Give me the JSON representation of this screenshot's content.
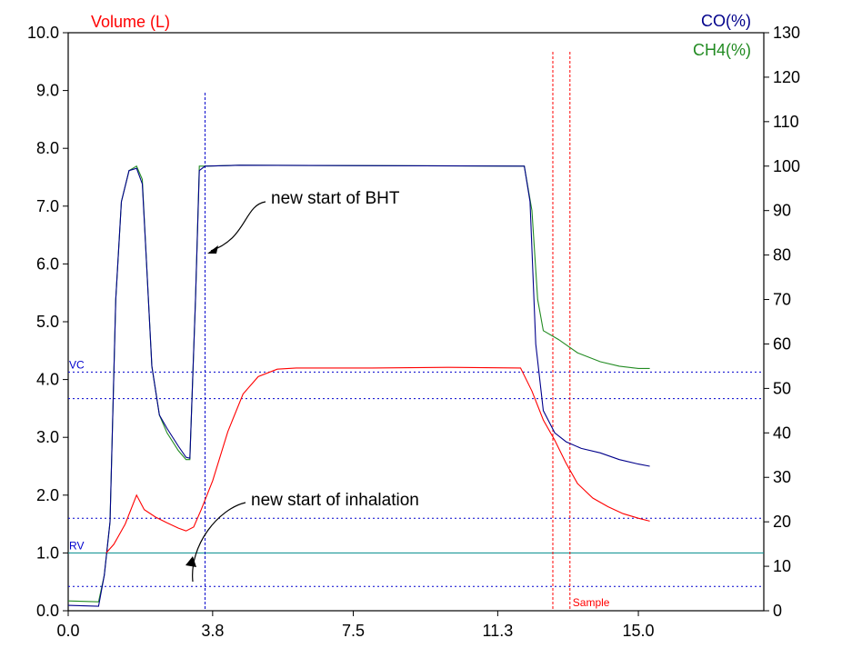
{
  "chart_data": {
    "type": "line",
    "title": "",
    "left_axis_title": "Volume (L)",
    "right_axis_titles": [
      "CO(%)",
      "CH4(%)"
    ],
    "xlim": [
      0,
      18.3
    ],
    "ylim_left": [
      0,
      10
    ],
    "ylim_right": [
      0,
      130
    ],
    "x_ticks": [
      {
        "value": 0,
        "label": "0.0"
      },
      {
        "value": 3.8,
        "label": "3.8"
      },
      {
        "value": 7.5,
        "label": "7.5"
      },
      {
        "value": 11.3,
        "label": "11.3"
      },
      {
        "value": 15.0,
        "label": "15.0"
      }
    ],
    "y_ticks_left": [
      "0.0",
      "1.0",
      "2.0",
      "3.0",
      "4.0",
      "5.0",
      "6.0",
      "7.0",
      "8.0",
      "9.0",
      "10.0"
    ],
    "y_ticks_right": [
      "0",
      "10",
      "20",
      "30",
      "40",
      "50",
      "60",
      "70",
      "80",
      "90",
      "100",
      "110",
      "120",
      "130"
    ],
    "colors": {
      "volume": "#ff0000",
      "co": "#00008b",
      "ch4": "#228b22",
      "reference": "#0000cd",
      "rv_line": "#008b8b",
      "sample": "#ff0000",
      "bht": "#0000cd"
    },
    "series": [
      {
        "name": "Volume (L)",
        "axis": "left",
        "color": "#ff0000",
        "points": [
          [
            1.0,
            1.0
          ],
          [
            1.2,
            1.15
          ],
          [
            1.5,
            1.5
          ],
          [
            1.8,
            2.0
          ],
          [
            2.0,
            1.75
          ],
          [
            2.3,
            1.62
          ],
          [
            2.6,
            1.52
          ],
          [
            2.9,
            1.43
          ],
          [
            3.1,
            1.38
          ],
          [
            3.3,
            1.45
          ],
          [
            3.5,
            1.75
          ],
          [
            3.8,
            2.25
          ],
          [
            4.2,
            3.1
          ],
          [
            4.6,
            3.75
          ],
          [
            5.0,
            4.05
          ],
          [
            5.5,
            4.18
          ],
          [
            6.0,
            4.2
          ],
          [
            8.0,
            4.2
          ],
          [
            10.0,
            4.21
          ],
          [
            11.9,
            4.2
          ],
          [
            12.2,
            3.8
          ],
          [
            12.5,
            3.3
          ],
          [
            12.8,
            2.95
          ],
          [
            13.1,
            2.55
          ],
          [
            13.4,
            2.2
          ],
          [
            13.8,
            1.95
          ],
          [
            14.2,
            1.8
          ],
          [
            14.6,
            1.68
          ],
          [
            15.0,
            1.6
          ],
          [
            15.3,
            1.55
          ]
        ]
      },
      {
        "name": "CO(%)",
        "axis": "right",
        "color": "#00008b",
        "points": [
          [
            0,
            1.2
          ],
          [
            0.8,
            1.0
          ],
          [
            0.95,
            8
          ],
          [
            1.1,
            20
          ],
          [
            1.25,
            70
          ],
          [
            1.4,
            92
          ],
          [
            1.6,
            99
          ],
          [
            1.8,
            99.5
          ],
          [
            1.95,
            96
          ],
          [
            2.05,
            80
          ],
          [
            2.2,
            55
          ],
          [
            2.4,
            44
          ],
          [
            2.6,
            41
          ],
          [
            2.9,
            37
          ],
          [
            3.1,
            34.5
          ],
          [
            3.2,
            34.3
          ],
          [
            3.35,
            70
          ],
          [
            3.45,
            99
          ],
          [
            3.6,
            100
          ],
          [
            4.5,
            100.2
          ],
          [
            12.0,
            100
          ],
          [
            12.15,
            92
          ],
          [
            12.3,
            60
          ],
          [
            12.5,
            45
          ],
          [
            12.8,
            40
          ],
          [
            13.1,
            38
          ],
          [
            13.5,
            36.5
          ],
          [
            14.0,
            35.5
          ],
          [
            14.5,
            34
          ],
          [
            15.0,
            33
          ],
          [
            15.3,
            32.5
          ]
        ]
      },
      {
        "name": "CH4(%)",
        "axis": "right",
        "color": "#228b22",
        "points": [
          [
            0,
            2.2
          ],
          [
            0.8,
            2.0
          ],
          [
            0.95,
            8
          ],
          [
            1.1,
            20
          ],
          [
            1.25,
            70
          ],
          [
            1.4,
            92
          ],
          [
            1.6,
            99
          ],
          [
            1.8,
            100
          ],
          [
            1.95,
            97
          ],
          [
            2.05,
            80
          ],
          [
            2.2,
            55
          ],
          [
            2.4,
            44
          ],
          [
            2.6,
            40
          ],
          [
            2.9,
            36
          ],
          [
            3.1,
            34
          ],
          [
            3.2,
            34
          ],
          [
            3.35,
            70
          ],
          [
            3.45,
            100
          ],
          [
            3.6,
            100
          ],
          [
            4.5,
            100.2
          ],
          [
            12.0,
            100
          ],
          [
            12.2,
            90
          ],
          [
            12.35,
            70
          ],
          [
            12.5,
            63
          ],
          [
            12.9,
            61
          ],
          [
            13.4,
            58
          ],
          [
            14.0,
            56
          ],
          [
            14.5,
            55
          ],
          [
            15.0,
            54.5
          ],
          [
            15.3,
            54.5
          ]
        ]
      }
    ],
    "reference_lines": [
      {
        "label": "VC",
        "axis": "left",
        "y": 4.13,
        "color": "#0000cd"
      },
      {
        "label": "",
        "axis": "left",
        "y": 3.67,
        "color": "#0000cd"
      },
      {
        "label": "",
        "axis": "left",
        "y": 1.6,
        "color": "#0000cd"
      },
      {
        "label": "RV",
        "axis": "left",
        "y": 1.0,
        "color": "#008b8b",
        "solid": true
      },
      {
        "label": "",
        "axis": "left",
        "y": 0.42,
        "color": "#0000cd"
      }
    ],
    "vertical_markers": [
      {
        "x": 3.6,
        "color": "#0000cd",
        "label": ""
      },
      {
        "x": 12.75,
        "color": "#ff0000",
        "label": ""
      },
      {
        "x": 13.2,
        "color": "#ff0000",
        "label": "Sample"
      }
    ],
    "annotations": [
      {
        "text": "new start of BHT"
      },
      {
        "text": "new start of inhalation"
      }
    ]
  }
}
